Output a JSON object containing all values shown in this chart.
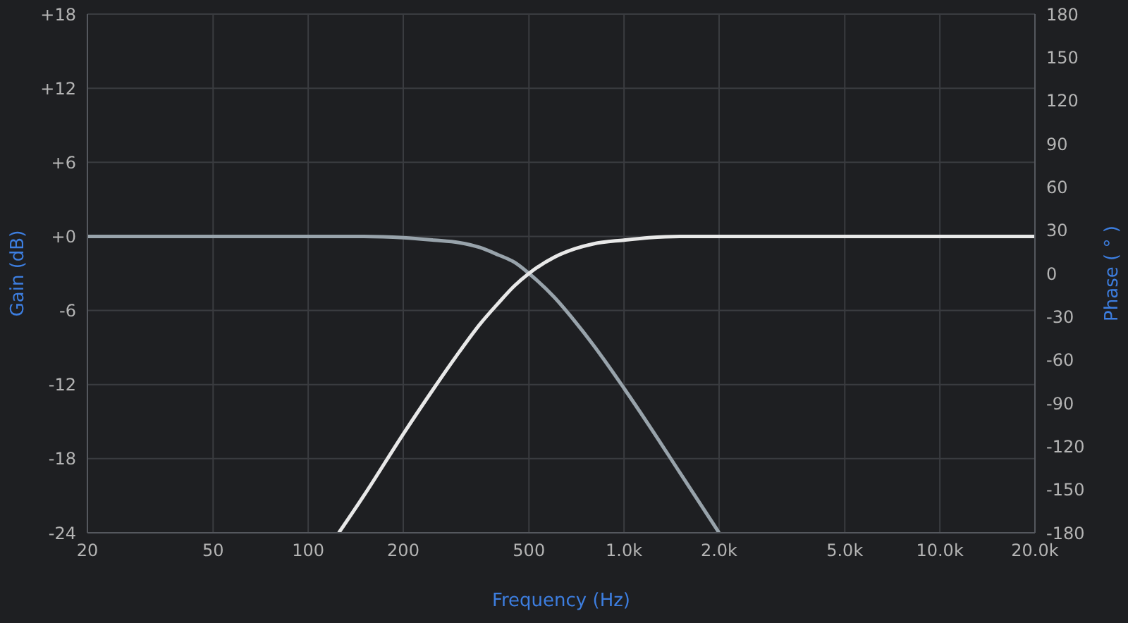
{
  "chart_data": {
    "type": "line",
    "xlabel": "Frequency (Hz)",
    "ylabel": "Gain (dB)",
    "y2label": "Phase ( ° )",
    "log": "x",
    "grid": true,
    "xlim": [
      20,
      20000
    ],
    "xticks": [
      20,
      50,
      100,
      200,
      500,
      {
        "value": 1000,
        "label": "1.0k"
      },
      {
        "value": 2000,
        "label": "2.0k"
      },
      {
        "value": 5000,
        "label": "5.0k"
      },
      {
        "value": 10000,
        "label": "10.0k"
      },
      {
        "value": 20000,
        "label": "20.0k"
      }
    ],
    "ylim": [
      -24,
      18
    ],
    "yticks": [
      -24,
      -18,
      -12,
      -6,
      {
        "value": 0,
        "label": "+0"
      },
      {
        "value": 6,
        "label": "+6"
      },
      {
        "value": 12,
        "label": "+12"
      },
      {
        "value": 18,
        "label": "+18"
      }
    ],
    "y2lim": [
      -180,
      180
    ],
    "y2ticks": [
      -180,
      -150,
      -120,
      -90,
      -60,
      -30,
      0,
      30,
      60,
      90,
      120,
      150,
      180
    ],
    "series": [
      {
        "color": "#98a3ab",
        "x": [
          20,
          50,
          100,
          150,
          200,
          250,
          300,
          350,
          400,
          450,
          500,
          600,
          700,
          800,
          1000,
          1200,
          1500,
          2000
        ],
        "values": [
          0,
          0,
          0,
          0,
          -0.1,
          -0.3,
          -0.5,
          -0.9,
          -1.5,
          -2.1,
          -3.0,
          -4.9,
          -6.9,
          -8.8,
          -12.3,
          -15.3,
          -19.1,
          -24.0
        ]
      },
      {
        "color": "#e8e8e8",
        "x": [
          125,
          150,
          200,
          250,
          300,
          350,
          400,
          450,
          500,
          600,
          700,
          800,
          1000,
          1200,
          1500,
          2000,
          5000,
          20000
        ],
        "values": [
          -24.0,
          -21.0,
          -16.0,
          -12.3,
          -9.4,
          -7.1,
          -5.4,
          -4.0,
          -3.0,
          -1.7,
          -1.0,
          -0.6,
          -0.3,
          -0.1,
          0,
          0,
          0,
          0
        ]
      }
    ]
  }
}
